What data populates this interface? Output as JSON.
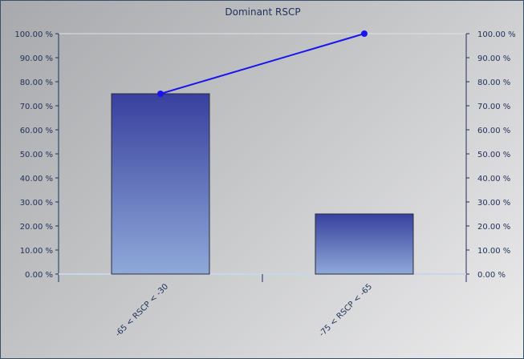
{
  "chart_data": {
    "type": "bar",
    "title": "Dominant RSCP",
    "categories": [
      "-65 < RSCP < -30",
      "-75 < RSCP < -65"
    ],
    "series": [
      {
        "type": "bar",
        "values": [
          75,
          25
        ]
      },
      {
        "type": "line",
        "values": [
          75,
          100
        ]
      }
    ],
    "ylim": [
      0,
      100
    ],
    "y_ticks": [
      "0.00 %",
      "10.00 %",
      "20.00 %",
      "30.00 %",
      "40.00 %",
      "50.00 %",
      "60.00 %",
      "70.00 %",
      "80.00 %",
      "90.00 %",
      "100.00 %"
    ],
    "y2_ticks": [
      "0.00 %",
      "10.00 %",
      "20.00 %",
      "30.00 %",
      "40.00 %",
      "50.00 %",
      "60.00 %",
      "70.00 %",
      "80.00 %",
      "90.00 %",
      "100.00 %"
    ],
    "grid": false,
    "colors": {
      "bar_top": "#38409e",
      "bar_bottom": "#8fa9d8",
      "line": "#1a14f0",
      "axis": "#1e2f5a"
    }
  }
}
